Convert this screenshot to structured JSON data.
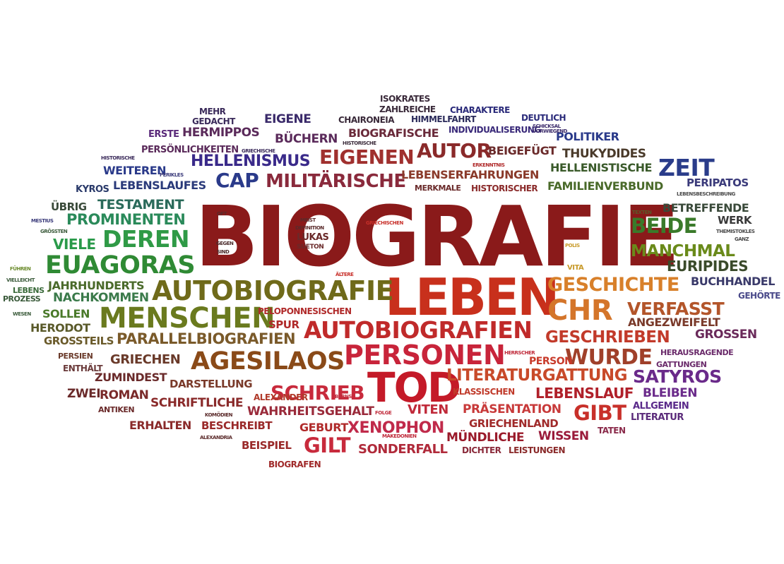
{
  "title": "BIOGRAFIE",
  "words": [
    {
      "text": "BIOGRAFIE",
      "color": "#8a1a1a"
    },
    {
      "text": "LEBEN",
      "color": "#c8301c"
    },
    {
      "text": "TOD",
      "color": "#c41a28"
    },
    {
      "text": "PERSONEN",
      "color": "#c8243a"
    },
    {
      "text": "AUTOBIOGRAFIE",
      "color": "#6f6a1a"
    },
    {
      "text": "AUTOBIOGRAFIEN",
      "color": "#c02a2a"
    },
    {
      "text": "MENSCHEN",
      "color": "#6a7a1e"
    },
    {
      "text": "AGESILAOS",
      "color": "#8a4a18"
    },
    {
      "text": "EUAGORAS",
      "color": "#2f8a34"
    },
    {
      "text": "DEREN",
      "color": "#2f9a46"
    },
    {
      "text": "CHR",
      "color": "#d4752a"
    },
    {
      "text": "GESCHICHTE",
      "color": "#d8802a"
    },
    {
      "text": "VERFASST",
      "color": "#b3552a"
    },
    {
      "text": "WURDE",
      "color": "#a0402a"
    },
    {
      "text": "SCHRIEB",
      "color": "#c82a3c"
    },
    {
      "text": "EIGENEN",
      "color": "#a0302e"
    },
    {
      "text": "MILITÄRISCHE",
      "color": "#8a2a3c"
    },
    {
      "text": "AUTOR",
      "color": "#8a2a2a"
    },
    {
      "text": "ZEIT",
      "color": "#2a3c8a"
    },
    {
      "text": "BEIDE",
      "color": "#3a7a2a"
    },
    {
      "text": "MANCHMAL",
      "color": "#6a8a1a"
    },
    {
      "text": "EURIPIDES",
      "color": "#3a4a2a"
    },
    {
      "text": "CAP",
      "color": "#2a3a8a"
    },
    {
      "text": "HELLENISMUS",
      "color": "#3a2a8a"
    },
    {
      "text": "GILT",
      "color": "#c82a3c"
    },
    {
      "text": "GIBT",
      "color": "#c8302a"
    },
    {
      "text": "SATYROS",
      "color": "#6a2a8a"
    },
    {
      "text": "PARALLELBIOGRAFIEN",
      "color": "#7a5a2a"
    },
    {
      "text": "GESCHRIEBEN",
      "color": "#c23a2a"
    },
    {
      "text": "LITERATURGATTUNG",
      "color": "#c84a2a"
    },
    {
      "text": "LEBENSLAUF",
      "color": "#b0202a"
    },
    {
      "text": "XENOPHON",
      "color": "#c02a4a"
    },
    {
      "text": "PROMINENTEN",
      "color": "#2a8a5a"
    },
    {
      "text": "TESTAMENT",
      "color": "#2a6a5a"
    },
    {
      "text": "NACHKOMMEN",
      "color": "#3a7a4a"
    },
    {
      "text": "JAHRHUNDERTS",
      "color": "#4a6a2a"
    },
    {
      "text": "VIELE",
      "color": "#2a9a4a"
    },
    {
      "text": "SOLLEN",
      "color": "#4a7a2a"
    },
    {
      "text": "HERODOT",
      "color": "#5a5a2a"
    },
    {
      "text": "GROSSTEILS",
      "color": "#6a5a2a"
    },
    {
      "text": "GRIECHEN",
      "color": "#6a3a2a"
    },
    {
      "text": "ZUMINDEST",
      "color": "#6a2a2a"
    },
    {
      "text": "DARSTELLUNG",
      "color": "#7a3a2a"
    },
    {
      "text": "ROMAN",
      "color": "#7a2a2a"
    },
    {
      "text": "ZWEI",
      "color": "#6a2a2a"
    },
    {
      "text": "SCHRIFTLICHE",
      "color": "#8a2a2a"
    },
    {
      "text": "ERHALTEN",
      "color": "#8a2a2a"
    },
    {
      "text": "BESCHREIBT",
      "color": "#9a2a2a"
    },
    {
      "text": "WAHRHEITSGEHALT",
      "color": "#9a2a3a"
    },
    {
      "text": "BEISPIEL",
      "color": "#9a2a2a"
    },
    {
      "text": "GEBURT",
      "color": "#b02a2a"
    },
    {
      "text": "SONDERFALL",
      "color": "#b02a3a"
    },
    {
      "text": "VITEN",
      "color": "#c02a3a"
    },
    {
      "text": "PRÄSENTATION",
      "color": "#c83a3a"
    },
    {
      "text": "GRIECHENLAND",
      "color": "#a02a2a"
    },
    {
      "text": "MÜNDLICHE",
      "color": "#9a1a2a"
    },
    {
      "text": "WISSEN",
      "color": "#9a1a3a"
    },
    {
      "text": "DICHTER",
      "color": "#8a2a3a"
    },
    {
      "text": "LEISTUNGEN",
      "color": "#8a2a2a"
    },
    {
      "text": "BIOGRAFEN",
      "color": "#a02a2a"
    },
    {
      "text": "PERSON",
      "color": "#c83a2a"
    },
    {
      "text": "SPUR",
      "color": "#b02a2a"
    },
    {
      "text": "PELOPONNESISCHEN",
      "color": "#b02a2a"
    },
    {
      "text": "ALEXANDER",
      "color": "#b03a2a"
    },
    {
      "text": "BLEIBEN",
      "color": "#6a2a8a"
    },
    {
      "text": "ALLGEMEIN",
      "color": "#5a2a8a"
    },
    {
      "text": "LITERATUR",
      "color": "#5a2a7a"
    },
    {
      "text": "TATEN",
      "color": "#8a2a4a"
    },
    {
      "text": "GATTUNGEN",
      "color": "#6a2a6a"
    },
    {
      "text": "HERAUSRAGENDE",
      "color": "#6a2a6a"
    },
    {
      "text": "GROSSEN",
      "color": "#6a2a5a"
    },
    {
      "text": "ANGEZWEIFELT",
      "color": "#7a3a2a"
    },
    {
      "text": "BUCHHANDEL",
      "color": "#3a3a6a"
    },
    {
      "text": "GEHÖRTE",
      "color": "#4a4a8a"
    },
    {
      "text": "BETREFFENDE",
      "color": "#3a4a3a"
    },
    {
      "text": "WERK",
      "color": "#3a3a3a"
    },
    {
      "text": "PERIPATOS",
      "color": "#3a3a7a"
    },
    {
      "text": "HELLENISTISCHE",
      "color": "#3a5a2a"
    },
    {
      "text": "FAMILIENVERBUND",
      "color": "#4a6a2a"
    },
    {
      "text": "THUKYDIDES",
      "color": "#4a3a2a"
    },
    {
      "text": "POLITIKER",
      "color": "#2a3a8a"
    },
    {
      "text": "BEIGEFÜGT",
      "color": "#6a2a2a"
    },
    {
      "text": "LEBENSERFAHRUNGEN",
      "color": "#8a3a2a"
    },
    {
      "text": "HISTORISCHER",
      "color": "#8a2a2a"
    },
    {
      "text": "BÜCHERN",
      "color": "#5a2a5a"
    },
    {
      "text": "BIOGRAFISCHE",
      "color": "#6a2a3a"
    },
    {
      "text": "EIGENE",
      "color": "#3a2a6a"
    },
    {
      "text": "HERMIPPOS",
      "color": "#5a2a5a"
    },
    {
      "text": "ERSTE",
      "color": "#5a2a7a"
    },
    {
      "text": "MEHR",
      "color": "#3a2a5a"
    },
    {
      "text": "GEDACHT",
      "color": "#3a2a5a"
    },
    {
      "text": "PERSÖNLICHKEITEN",
      "color": "#5a2a5a"
    },
    {
      "text": "WEITEREN",
      "color": "#2a3a8a"
    },
    {
      "text": "LEBENSLAUFES",
      "color": "#2a3a7a"
    },
    {
      "text": "KYROS",
      "color": "#2a3a6a"
    },
    {
      "text": "ÜBRIG",
      "color": "#3a4a3a"
    },
    {
      "text": "ISOKRATES",
      "color": "#3a2a3a"
    },
    {
      "text": "ZAHLREICHE",
      "color": "#3a2a3a"
    },
    {
      "text": "HIMMELFAHRT",
      "color": "#2a2a5a"
    },
    {
      "text": "CHARAKTERE",
      "color": "#2a2a7a"
    },
    {
      "text": "CHAIRONEIA",
      "color": "#3a2a3a"
    },
    {
      "text": "INDIVIDUALISERUNG",
      "color": "#3a2a7a"
    },
    {
      "text": "DEUTLICH",
      "color": "#2a2a7a"
    },
    {
      "text": "KLASSISCHEN",
      "color": "#c03a2a"
    },
    {
      "text": "ENTHÄLT",
      "color": "#6a3a3a"
    },
    {
      "text": "PERSIEN",
      "color": "#6a3a2a"
    },
    {
      "text": "ANTIKEN",
      "color": "#6a2a2a"
    },
    {
      "text": "PROZESS",
      "color": "#3a5a3a"
    },
    {
      "text": "LEBENS",
      "color": "#3a6a3a"
    },
    {
      "text": "LUKAS",
      "color": "#6a2a2a"
    },
    {
      "text": "SUETON",
      "color": "#6a2a2a"
    },
    {
      "text": "MEIST",
      "color": "#5a2a2a"
    },
    {
      "text": "DEFINITION",
      "color": "#5a2a2a"
    },
    {
      "text": "OFT",
      "color": "#5a2a2a"
    },
    {
      "text": "GEGEN",
      "color": "#4a2a2a"
    },
    {
      "text": "SIND",
      "color": "#4a2a2a"
    },
    {
      "text": "GRIECHISCHEN",
      "color": "#c8302a"
    },
    {
      "text": "ÄLTERE",
      "color": "#c8302a"
    },
    {
      "text": "VITA",
      "color": "#c89a2a"
    },
    {
      "text": "POLIS",
      "color": "#c89a2a"
    },
    {
      "text": "TEXTEN",
      "color": "#5a5a2a"
    },
    {
      "text": "THEMISTOKLES",
      "color": "#4a4a4a"
    },
    {
      "text": "GANZ",
      "color": "#4a4a4a"
    },
    {
      "text": "LEBENSBESCHREIBUNG",
      "color": "#4a4a4a"
    },
    {
      "text": "HISTORISCHE",
      "color": "#3a2a5a"
    },
    {
      "text": "WESEN",
      "color": "#3a5a3a"
    },
    {
      "text": "FÜHREN",
      "color": "#6a8a2a"
    },
    {
      "text": "VIELLEICHT",
      "color": "#3a5a3a"
    },
    {
      "text": "MESTIUS",
      "color": "#3a3a7a"
    },
    {
      "text": "GRÖSSTEN",
      "color": "#3a5a3a"
    },
    {
      "text": "PERIKLES",
      "color": "#3a3a7a"
    },
    {
      "text": "GRIECHISCHE",
      "color": "#3a2a5a"
    },
    {
      "text": "HERRSCHER",
      "color": "#c02a3a"
    },
    {
      "text": "FOLGE",
      "color": "#c02a3a"
    },
    {
      "text": "MAKEDONIEN",
      "color": "#c02a3a"
    },
    {
      "text": "BERNS",
      "color": "#c02a3a"
    },
    {
      "text": "ALEXANDRIA",
      "color": "#5a2a2a"
    },
    {
      "text": "KOMÖDIEN",
      "color": "#5a2a2a"
    },
    {
      "text": "ERKENNTNIS",
      "color": "#b02a2a"
    },
    {
      "text": "VORWIEGEND",
      "color": "#3a2a6a"
    },
    {
      "text": "SCHICKSAL",
      "color": "#3a2a6a"
    },
    {
      "text": "HISTORISCHE",
      "color": "#3a2a3a"
    },
    {
      "text": "MERKMALE",
      "color": "#6a2a2a"
    }
  ]
}
